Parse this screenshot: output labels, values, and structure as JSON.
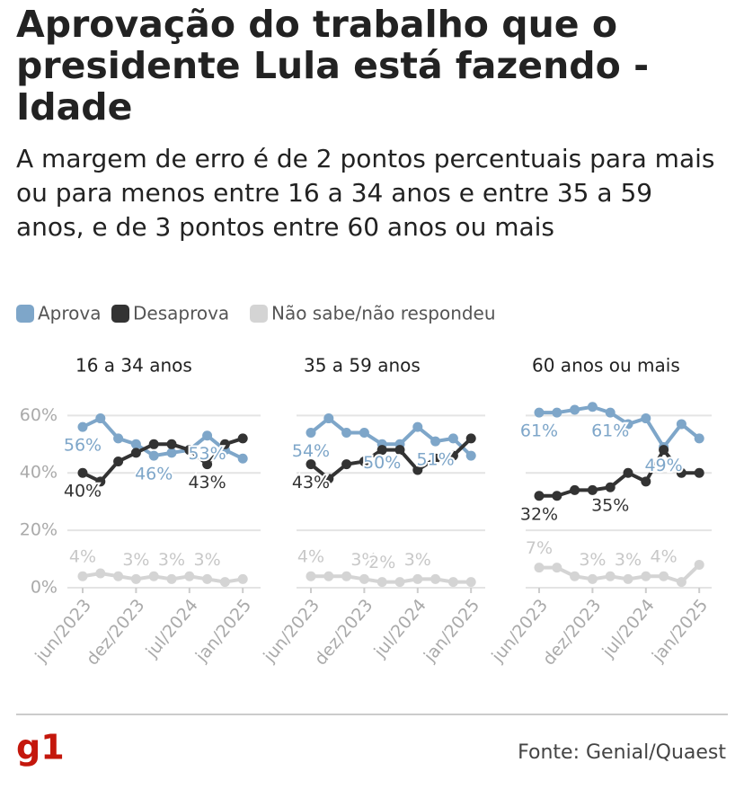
{
  "header": {
    "title": "Aprovação do trabalho que o presidente Lula está fazendo - Idade",
    "subtitle": "A margem de erro é de 2 pontos percentuais para mais ou para menos entre 16 a 34 anos e entre 35 a 59 anos, e de 3 pontos entre 60 anos ou mais"
  },
  "footer": {
    "logo": "g1",
    "source": "Fonte: Genial/Quaest"
  },
  "chart_data": [
    {
      "type": "line",
      "title": "16 a 34 anos",
      "categories": [
        "jun/2023",
        null,
        null,
        "dez/2023",
        null,
        null,
        "jul/2024",
        null,
        null,
        "jan/2025"
      ],
      "ylim": [
        0,
        67
      ],
      "yticks": [
        {
          "value": 0,
          "label": "0%"
        },
        {
          "value": 20,
          "label": "20%"
        },
        {
          "value": 40,
          "label": "40%"
        },
        {
          "value": 60,
          "label": "60%"
        }
      ],
      "grid": true,
      "series": [
        {
          "name": "Aprova",
          "color": "#7ea6c9",
          "values": [
            56,
            59,
            52,
            50,
            46,
            47,
            48,
            53,
            48,
            45
          ],
          "value_labels": [
            "56%",
            null,
            null,
            null,
            "46%",
            null,
            null,
            "53%",
            null,
            null
          ]
        },
        {
          "name": "Desaprova",
          "color": "#333333",
          "values": [
            40,
            37,
            44,
            47,
            50,
            50,
            48,
            43,
            50,
            52
          ],
          "value_labels": [
            "40%",
            null,
            null,
            null,
            null,
            null,
            null,
            "43%",
            null,
            null
          ]
        },
        {
          "name": "Não sabe/não respondeu",
          "color": "#d4d4d4",
          "values": [
            4,
            5,
            4,
            3,
            4,
            3,
            4,
            3,
            2,
            3
          ],
          "value_labels": [
            "4%",
            null,
            null,
            "3%",
            null,
            "3%",
            null,
            "3%",
            null,
            null
          ]
        }
      ]
    },
    {
      "type": "line",
      "title": "35 a 59 anos",
      "categories": [
        "jun/2023",
        null,
        null,
        "dez/2023",
        null,
        null,
        "jul/2024",
        null,
        null,
        "jan/2025"
      ],
      "ylim": [
        0,
        67
      ],
      "yticks": [
        {
          "value": 0,
          "label": "0%"
        },
        {
          "value": 20,
          "label": "20%"
        },
        {
          "value": 40,
          "label": "40%"
        },
        {
          "value": 60,
          "label": "60%"
        }
      ],
      "grid": true,
      "series": [
        {
          "name": "Aprova",
          "color": "#7ea6c9",
          "values": [
            54,
            59,
            54,
            54,
            50,
            50,
            56,
            51,
            52,
            46
          ],
          "value_labels": [
            "54%",
            null,
            null,
            null,
            "50%",
            null,
            null,
            "51%",
            null,
            null
          ]
        },
        {
          "name": "Desaprova",
          "color": "#333333",
          "values": [
            43,
            38,
            43,
            44,
            48,
            48,
            41,
            45,
            46,
            52
          ],
          "value_labels": [
            "43%",
            null,
            null,
            null,
            null,
            null,
            null,
            null,
            null,
            null
          ]
        },
        {
          "name": "Não sabe/não respondeu",
          "color": "#d4d4d4",
          "values": [
            4,
            4,
            4,
            3,
            2,
            2,
            3,
            3,
            2,
            2
          ],
          "value_labels": [
            "4%",
            null,
            null,
            "3%",
            "2%",
            null,
            "3%",
            null,
            null,
            null
          ]
        }
      ]
    },
    {
      "type": "line",
      "title": "60 anos ou mais",
      "categories": [
        "jun/2023",
        null,
        null,
        "dez/2023",
        null,
        null,
        "jul/2024",
        null,
        null,
        "jan/2025"
      ],
      "ylim": [
        0,
        67
      ],
      "yticks": [
        {
          "value": 0,
          "label": "0%"
        },
        {
          "value": 20,
          "label": "20%"
        },
        {
          "value": 40,
          "label": "40%"
        },
        {
          "value": 60,
          "label": "60%"
        }
      ],
      "grid": true,
      "series": [
        {
          "name": "Aprova",
          "color": "#7ea6c9",
          "values": [
            61,
            61,
            62,
            63,
            61,
            57,
            59,
            49,
            57,
            52
          ],
          "value_labels": [
            "61%",
            null,
            null,
            null,
            "61%",
            null,
            null,
            "49%",
            null,
            null
          ]
        },
        {
          "name": "Desaprova",
          "color": "#333333",
          "values": [
            32,
            32,
            34,
            34,
            35,
            40,
            37,
            48,
            40,
            40
          ],
          "value_labels": [
            "32%",
            null,
            null,
            null,
            "35%",
            null,
            null,
            null,
            null,
            null
          ]
        },
        {
          "name": "Não sabe/não respondeu",
          "color": "#d4d4d4",
          "values": [
            7,
            7,
            4,
            3,
            4,
            3,
            4,
            4,
            2,
            8
          ],
          "value_labels": [
            "7%",
            null,
            null,
            "3%",
            null,
            "3%",
            null,
            "4%",
            null,
            null
          ]
        }
      ]
    }
  ]
}
